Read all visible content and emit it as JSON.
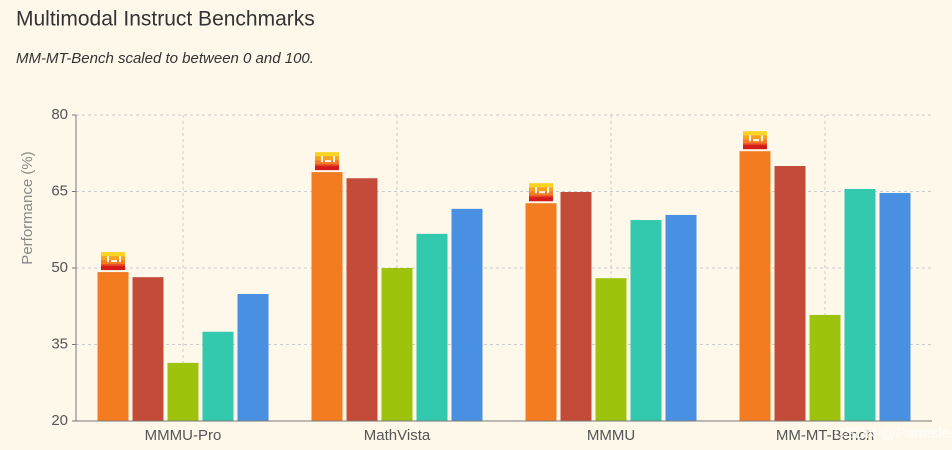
{
  "chart_data": {
    "type": "bar",
    "title": "Multimodal Instruct Benchmarks",
    "subtitle": "MM-MT-Bench scaled to between 0 and 100.",
    "y_label": "Performance (%)",
    "categories": [
      "MMMU-Pro",
      "MathVista",
      "MMMU",
      "MM-MT-Bench"
    ],
    "series": [
      {
        "color": "#f47c20",
        "values": [
          49.2,
          68.8,
          62.7,
          72.9
        ]
      },
      {
        "color": "#c44b3a",
        "values": [
          48.2,
          67.6,
          64.9,
          70.0
        ]
      },
      {
        "color": "#9ec30d",
        "values": [
          31.4,
          50.0,
          48.0,
          40.8
        ]
      },
      {
        "color": "#33c9ae",
        "values": [
          37.5,
          56.7,
          59.4,
          65.5
        ]
      },
      {
        "color": "#4a90e2",
        "values": [
          44.9,
          61.6,
          60.4,
          64.7
        ]
      }
    ],
    "ylim": [
      20,
      80
    ],
    "yticks": [
      20,
      35,
      50,
      65,
      80
    ],
    "grid": true,
    "watermark": "CSDN @Panesle"
  }
}
